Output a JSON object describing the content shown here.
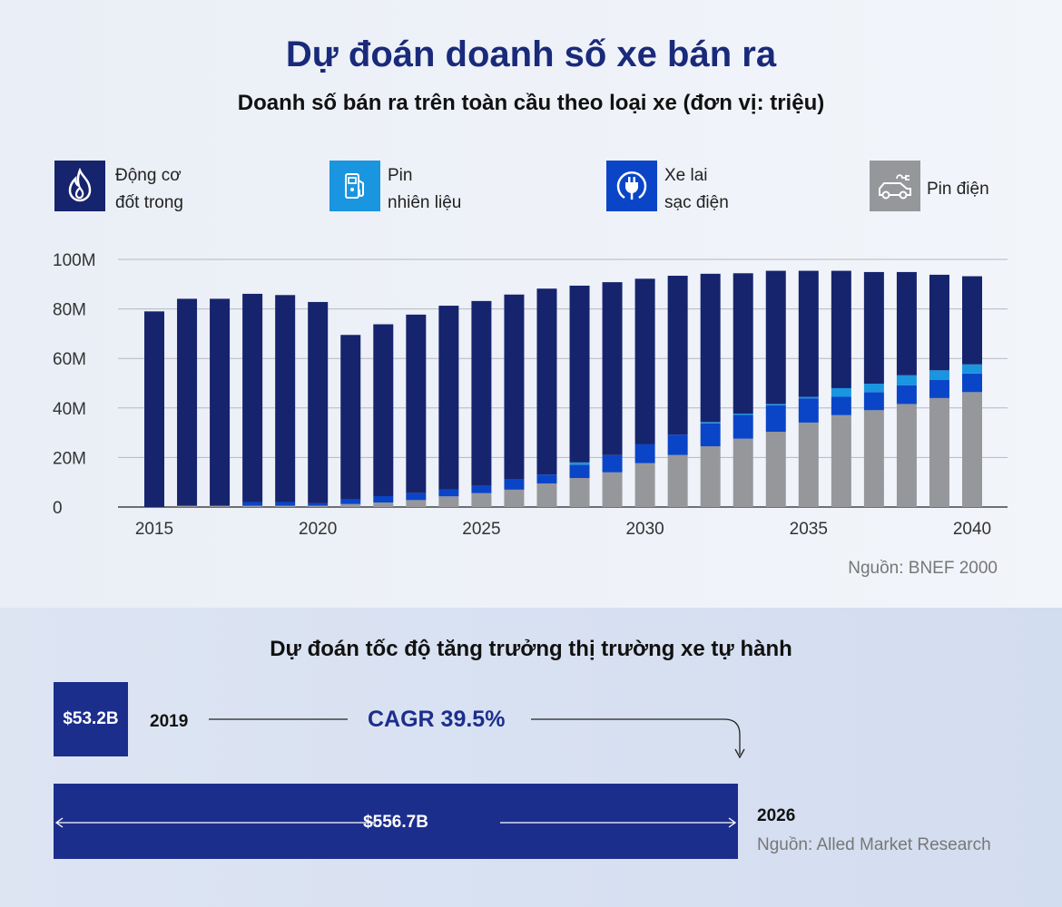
{
  "title": "Dự đoán doanh số xe bán ra",
  "subtitle": "Doanh số bán ra trên toàn cầu theo loại xe (đơn vị: triệu)",
  "legend": [
    {
      "label_line1": "Động cơ",
      "label_line2": "đốt trong",
      "icon": "flame-icon",
      "color": "#16246e"
    },
    {
      "label_line1": "Pin",
      "label_line2": "nhiên liệu",
      "icon": "fuel-pump-icon",
      "color": "#1a95e0"
    },
    {
      "label_line1": "Xe lai",
      "label_line2": "sạc điện",
      "icon": "plug-icon",
      "color": "#0a45c8"
    },
    {
      "label_line1": "Pin điện",
      "label_line2": "",
      "icon": "electric-car-icon",
      "color": "#96979b"
    }
  ],
  "chart_data": {
    "type": "bar",
    "stacked": true,
    "title": "Doanh số bán ra trên toàn cầu theo loại xe (đơn vị: triệu)",
    "categories": [
      2015,
      2016,
      2017,
      2018,
      2019,
      2020,
      2021,
      2022,
      2023,
      2024,
      2025,
      2026,
      2027,
      2028,
      2029,
      2030,
      2031,
      2032,
      2033,
      2034,
      2035,
      2036,
      2037,
      2038,
      2039,
      2040
    ],
    "x_tick_labels": [
      "2015",
      "2020",
      "2025",
      "2030",
      "2035",
      "2040"
    ],
    "y_tick_labels": [
      "0",
      "20M",
      "40M",
      "60M",
      "80M",
      "100M"
    ],
    "ylim": [
      0,
      100
    ],
    "grid": true,
    "series": [
      {
        "name": "Pin điện",
        "color": "#96979b",
        "values": [
          0,
          0.5,
          0.5,
          0.5,
          0.5,
          0.5,
          1.2,
          1.8,
          2.8,
          4.3,
          5.6,
          7.0,
          9.5,
          11.7,
          14.0,
          17.7,
          21.0,
          24.5,
          27.6,
          30.4,
          34.1,
          37.1,
          39.1,
          41.6,
          44.0,
          46.4
        ]
      },
      {
        "name": "Xe lai sạc điện",
        "color": "#0a45c8",
        "values": [
          0,
          0,
          0,
          1.5,
          1.5,
          1.0,
          1.8,
          2.6,
          2.8,
          2.7,
          2.9,
          4.1,
          3.6,
          5.4,
          7.0,
          7.6,
          8.2,
          9.3,
          9.6,
          10.7,
          9.8,
          7.4,
          7.3,
          7.6,
          7.4,
          7.5
        ]
      },
      {
        "name": "Pin nhiên liệu",
        "color": "#1a95e0",
        "values": [
          0,
          0,
          0,
          0,
          0,
          0,
          0,
          0,
          0,
          0,
          0,
          0,
          0,
          0.9,
          0,
          0,
          0,
          0.5,
          0.5,
          0.5,
          0.6,
          3.5,
          3.4,
          4.0,
          3.8,
          3.7
        ]
      },
      {
        "name": "Động cơ đốt trong",
        "color": "#16246e",
        "values": [
          79.0,
          83.6,
          83.6,
          84.1,
          83.6,
          81.3,
          66.5,
          69.4,
          72.1,
          74.3,
          74.7,
          74.7,
          75.1,
          71.4,
          69.8,
          66.9,
          64.2,
          59.9,
          56.7,
          53.8,
          50.9,
          47.4,
          45.1,
          41.7,
          38.6,
          35.6
        ]
      }
    ],
    "source": "Nguồn: BNEF 2000"
  },
  "growth": {
    "heading": "Dự đoán tốc độ tăng trưởng thị trường xe tự hành",
    "start_value": "$53.2B",
    "start_year": "2019",
    "cagr": "CAGR 39.5%",
    "end_value": "$556.7B",
    "end_year": "2026",
    "source": "Nguồn: Alled Market Research",
    "color": "#1c2e8c"
  }
}
